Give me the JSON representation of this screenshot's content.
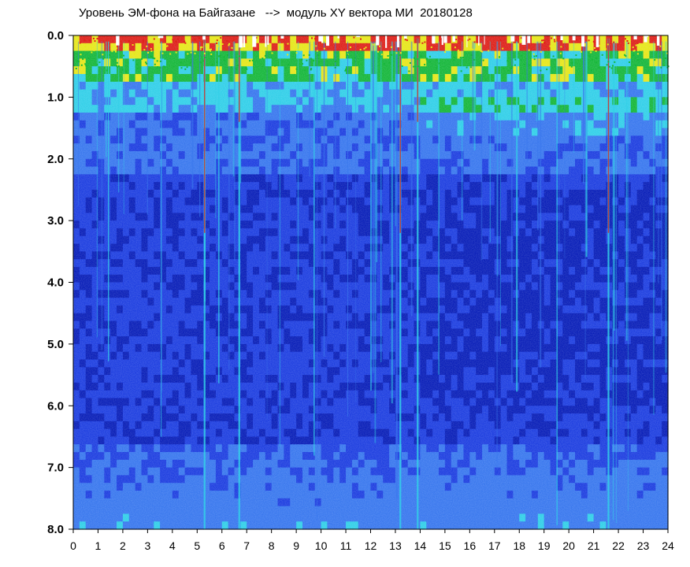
{
  "chart_data": {
    "type": "heatmap",
    "title": "Уровень ЭМ-фона на Байгазане   -->  модуль XY вектора МИ  20180128",
    "xlabel": "",
    "ylabel": "",
    "xlim": [
      0,
      24
    ],
    "ylim": [
      8.0,
      0.0
    ],
    "y_inverted": true,
    "x_ticks": [
      "0",
      "1",
      "2",
      "3",
      "4",
      "5",
      "6",
      "7",
      "8",
      "9",
      "10",
      "11",
      "12",
      "13",
      "14",
      "15",
      "16",
      "17",
      "18",
      "19",
      "20",
      "21",
      "22",
      "23",
      "24"
    ],
    "y_ticks": [
      "0.0",
      "1.0",
      "2.0",
      "3.0",
      "4.0",
      "5.0",
      "6.0",
      "7.0",
      "8.0"
    ],
    "grid": false,
    "colors": {
      "very_low": "#0a1fb8",
      "low": "#1f3fe0",
      "medium_low": "#3a78ee",
      "medium": "#33d0e8",
      "medium_high": "#17b83a",
      "high": "#e8e81a",
      "very_high": "#e0221a",
      "background_white": "#ffffff"
    },
    "bright_vertical_streaks_hours": [
      5.3,
      6.7,
      13.2,
      13.9,
      21.6
    ],
    "high_intensity_band_depth": [
      0.0,
      1.0
    ],
    "low_intensity_core_depth": [
      2.5,
      6.5
    ]
  }
}
